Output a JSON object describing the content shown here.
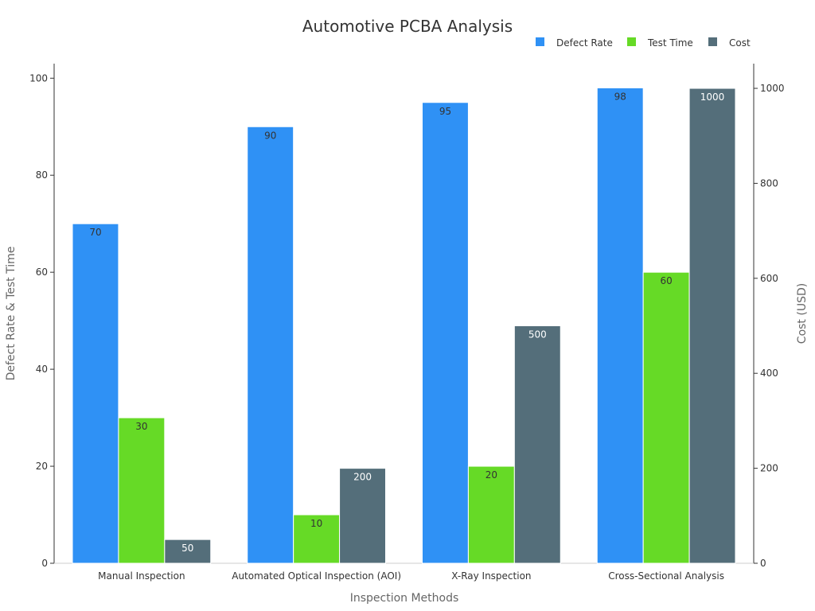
{
  "chart_data": {
    "type": "bar",
    "title": "Automotive PCBA Analysis",
    "categories": [
      "Manual Inspection",
      "Automated Optical Inspection (AOI)",
      "X-Ray Inspection",
      "Cross-Sectional Analysis"
    ],
    "series": [
      {
        "name": "Defect Rate",
        "axis": "left",
        "color": "#2f91f5",
        "label_color": "#333333",
        "values": [
          70,
          90,
          95,
          98
        ]
      },
      {
        "name": "Test Time",
        "axis": "left",
        "color": "#66da26",
        "label_color": "#333333",
        "values": [
          30,
          10,
          20,
          60
        ]
      },
      {
        "name": "Cost",
        "axis": "right",
        "color": "#546e7a",
        "label_color": "#ffffff",
        "values": [
          50,
          200,
          500,
          1000
        ]
      }
    ],
    "xlabel": "Inspection Methods",
    "ylabel": "Defect Rate & Test Time",
    "y2label": "Cost (USD)",
    "ylim": [
      0,
      103
    ],
    "y2lim": [
      0,
      1052
    ],
    "yticks": [
      0,
      20,
      40,
      60,
      80,
      100
    ],
    "y2ticks": [
      0,
      200,
      400,
      600,
      800,
      1000
    ],
    "grid": false,
    "legend_position": "top-right"
  }
}
